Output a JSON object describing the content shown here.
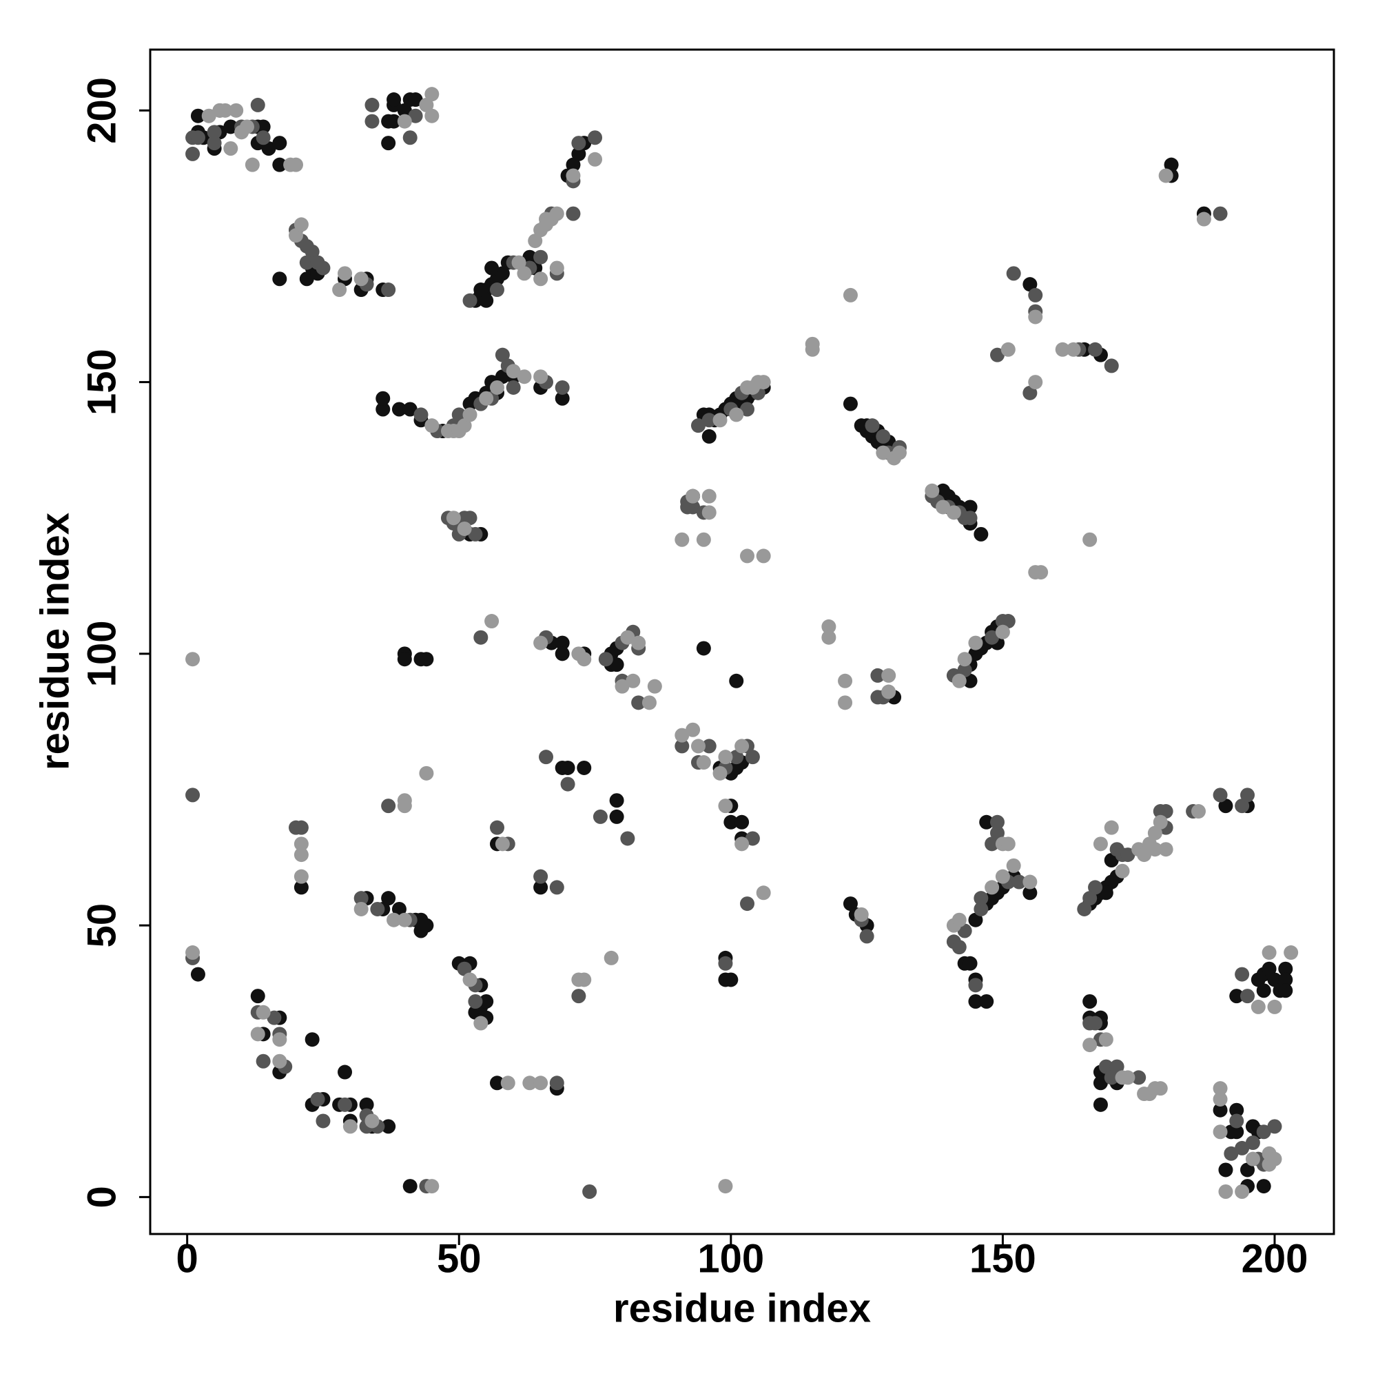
{
  "chart_data": {
    "type": "scatter",
    "x_label": "residue index",
    "y_label": "residue index",
    "xlim": [
      -6.8,
      210.9
    ],
    "ylim": [
      -6.8,
      211.2
    ],
    "xticks": [
      0,
      50,
      100,
      150,
      200
    ],
    "yticks": [
      0,
      50,
      100,
      150,
      200
    ],
    "series": [
      {
        "color": "#111111",
        "x": [
          2,
          2,
          3,
          5,
          6,
          8,
          13,
          13,
          14,
          15,
          17,
          17,
          38,
          38,
          38,
          41,
          42,
          37,
          37,
          40,
          53,
          54,
          55,
          56,
          57,
          58,
          56,
          59,
          63,
          64,
          71,
          72,
          73,
          70,
          55,
          54,
          22,
          23,
          24,
          17,
          29,
          32,
          33,
          36,
          36,
          36,
          39,
          41,
          43,
          47,
          52,
          53,
          55,
          57,
          56,
          58,
          60,
          65,
          69,
          95,
          96,
          97,
          98,
          99,
          100,
          101,
          102,
          103,
          104,
          106,
          96,
          122,
          124,
          125,
          126,
          127,
          128,
          129,
          130,
          125,
          127,
          139,
          140,
          141,
          142,
          143,
          144,
          144,
          146,
          93,
          52,
          54,
          40,
          40,
          43,
          44,
          67,
          69,
          69,
          73,
          78,
          78,
          79,
          79,
          95,
          101,
          130,
          144,
          145,
          146,
          147,
          148,
          149,
          144,
          149,
          98,
          100,
          101,
          102,
          100,
          100,
          102,
          102,
          69,
          70,
          73,
          79,
          79,
          2,
          21,
          57,
          33,
          36,
          37,
          39,
          42,
          43,
          43,
          44,
          50,
          52,
          54,
          53,
          54,
          55,
          55,
          65,
          57,
          68,
          13,
          14,
          17,
          17,
          23,
          23,
          25,
          28,
          30,
          29,
          30,
          33,
          34,
          37,
          41,
          99,
          99,
          100,
          122,
          123,
          125,
          143,
          144,
          145,
          145,
          147,
          145,
          147,
          148,
          149,
          150,
          152,
          155,
          147,
          166,
          167,
          168,
          169,
          170,
          171,
          170,
          169,
          191,
          195,
          181,
          181,
          187,
          155,
          165,
          168,
          166,
          166,
          168,
          168,
          168,
          168,
          171,
          168,
          190,
          191,
          192,
          193,
          193,
          195,
          195,
          196,
          197,
          198,
          193,
          197,
          198,
          198,
          199,
          200,
          201,
          202,
          202,
          202
        ],
        "y": [
          199,
          196,
          195,
          193,
          196,
          197,
          197,
          194,
          197,
          193,
          194,
          190,
          198,
          201,
          202,
          202,
          202,
          194,
          198,
          200,
          165,
          166,
          167,
          168,
          169,
          170,
          171,
          172,
          173,
          171,
          190,
          192,
          194,
          188,
          165,
          167,
          169,
          171,
          170,
          169,
          169,
          167,
          169,
          167,
          145,
          147,
          145,
          145,
          143,
          141,
          146,
          147,
          148,
          148,
          150,
          151,
          151,
          149,
          147,
          144,
          144,
          143,
          144,
          145,
          146,
          147,
          146,
          147,
          148,
          149,
          140,
          146,
          142,
          141,
          140,
          139,
          138,
          139,
          137,
          142,
          141,
          130,
          129,
          128,
          127,
          126,
          127,
          124,
          122,
          129,
          122,
          122,
          100,
          99,
          99,
          99,
          102,
          102,
          100,
          100,
          98,
          100,
          101,
          98,
          101,
          95,
          92,
          98,
          100,
          101,
          102,
          104,
          105,
          95,
          102,
          79,
          78,
          79,
          80,
          72,
          69,
          69,
          66,
          79,
          79,
          79,
          73,
          70,
          41,
          57,
          65,
          55,
          53,
          55,
          53,
          51,
          49,
          51,
          50,
          43,
          43,
          39,
          34,
          35,
          36,
          33,
          57,
          21,
          20,
          37,
          30,
          33,
          23,
          29,
          17,
          18,
          17,
          17,
          23,
          14,
          17,
          13,
          13,
          2,
          44,
          40,
          40,
          54,
          52,
          50,
          43,
          43,
          40,
          36,
          36,
          51,
          54,
          55,
          56,
          57,
          59,
          56,
          69,
          54,
          55,
          56,
          57,
          58,
          59,
          62,
          56,
          72,
          72,
          190,
          188,
          181,
          168,
          156,
          155,
          36,
          33,
          33,
          32,
          23,
          21,
          21,
          17,
          16,
          5,
          12,
          12,
          16,
          5,
          2,
          13,
          12,
          2,
          37,
          40,
          41,
          38,
          42,
          40,
          38,
          42,
          40,
          38
        ]
      },
      {
        "color": "#555555",
        "x": [
          1,
          2,
          5,
          5,
          6,
          10,
          12,
          14,
          1,
          13,
          34,
          34,
          41,
          42,
          52,
          57,
          60,
          63,
          65,
          68,
          67,
          71,
          71,
          72,
          75,
          20,
          21,
          22,
          23,
          22,
          24,
          25,
          33,
          37,
          43,
          46,
          49,
          50,
          54,
          56,
          58,
          59,
          66,
          69,
          60,
          94,
          96,
          100,
          102,
          105,
          103,
          126,
          128,
          129,
          131,
          137,
          138,
          140,
          142,
          143,
          144,
          92,
          93,
          95,
          92,
          48,
          49,
          50,
          52,
          53,
          51,
          54,
          66,
          77,
          80,
          82,
          80,
          83,
          83,
          127,
          128,
          127,
          141,
          143,
          150,
          148,
          151,
          91,
          94,
          96,
          99,
          101,
          103,
          104,
          104,
          103,
          66,
          70,
          76,
          81,
          72,
          74,
          1,
          1,
          37,
          20,
          21,
          57,
          59,
          32,
          35,
          41,
          51,
          53,
          53,
          65,
          68,
          68,
          13,
          16,
          17,
          14,
          18,
          24,
          25,
          29,
          33,
          35,
          33,
          44,
          99,
          124,
          125,
          141,
          142,
          143,
          145,
          146,
          151,
          153,
          148,
          149,
          149,
          146,
          165,
          171,
          172,
          173,
          179,
          180,
          180,
          167,
          166,
          185,
          190,
          194,
          195,
          190,
          152,
          156,
          156,
          149,
          155,
          164,
          167,
          170,
          166,
          167,
          168,
          169,
          170,
          171,
          175,
          192,
          193,
          194,
          196,
          197,
          198,
          198,
          200,
          194,
          195
        ],
        "y": [
          195,
          195,
          196,
          194,
          200,
          197,
          197,
          195,
          192,
          201,
          198,
          201,
          195,
          199,
          165,
          167,
          172,
          171,
          173,
          170,
          181,
          181,
          187,
          194,
          195,
          178,
          176,
          175,
          174,
          172,
          172,
          171,
          168,
          167,
          144,
          141,
          142,
          144,
          146,
          147,
          155,
          153,
          150,
          149,
          149,
          142,
          143,
          145,
          148,
          148,
          145,
          142,
          140,
          137,
          138,
          129,
          128,
          127,
          126,
          125,
          125,
          128,
          127,
          126,
          127,
          125,
          124,
          122,
          125,
          122,
          125,
          103,
          103,
          99,
          102,
          104,
          95,
          91,
          101,
          96,
          92,
          92,
          96,
          97,
          106,
          103,
          106,
          83,
          80,
          83,
          79,
          81,
          83,
          81,
          66,
          54,
          81,
          76,
          70,
          66,
          37,
          1,
          74,
          44,
          72,
          68,
          68,
          68,
          65,
          55,
          53,
          51,
          42,
          39,
          36,
          59,
          57,
          21,
          34,
          33,
          30,
          25,
          24,
          18,
          14,
          17,
          15,
          13,
          13,
          2,
          43,
          51,
          48,
          47,
          46,
          49,
          39,
          53,
          58,
          58,
          65,
          67,
          69,
          55,
          53,
          64,
          63,
          63,
          71,
          71,
          68,
          57,
          55,
          71,
          74,
          72,
          74,
          181,
          170,
          166,
          163,
          155,
          148,
          156,
          156,
          153,
          32,
          32,
          29,
          24,
          22,
          24,
          22,
          8,
          14,
          9,
          10,
          7,
          6,
          12,
          13,
          41,
          37
        ]
      },
      {
        "color": "#999999",
        "x": [
          4,
          6,
          7,
          9,
          10,
          11,
          12,
          19,
          20,
          8,
          44,
          45,
          45,
          40,
          61,
          62,
          64,
          65,
          66,
          67,
          68,
          65,
          68,
          71,
          75,
          66,
          20,
          21,
          28,
          29,
          32,
          45,
          48,
          49,
          51,
          52,
          55,
          57,
          60,
          65,
          62,
          50,
          98,
          101,
          103,
          105,
          106,
          104,
          130,
          131,
          128,
          137,
          139,
          141,
          91,
          93,
          95,
          96,
          96,
          103,
          106,
          115,
          115,
          122,
          118,
          118,
          49,
          51,
          1,
          56,
          65,
          72,
          73,
          81,
          83,
          80,
          82,
          85,
          86,
          121,
          121,
          129,
          129,
          142,
          143,
          145,
          150,
          91,
          93,
          94,
          95,
          98,
          102,
          99,
          102,
          106,
          99,
          78,
          72,
          73,
          1,
          40,
          40,
          44,
          21,
          21,
          21,
          58,
          32,
          38,
          40,
          52,
          54,
          59,
          63,
          65,
          14,
          13,
          17,
          17,
          30,
          34,
          45,
          99,
          124,
          141,
          142,
          155,
          150,
          152,
          150,
          151,
          148,
          172,
          168,
          170,
          175,
          176,
          177,
          178,
          179,
          180,
          178,
          186,
          180,
          187,
          156,
          151,
          156,
          163,
          161,
          166,
          156,
          157,
          166,
          169,
          172,
          173,
          176,
          177,
          178,
          179,
          190,
          190,
          190,
          191,
          194,
          196,
          199,
          199,
          200,
          197,
          199,
          200,
          203
        ],
        "y": [
          199,
          200,
          200,
          200,
          196,
          197,
          190,
          190,
          190,
          193,
          201,
          203,
          199,
          198,
          172,
          170,
          176,
          178,
          180,
          180,
          181,
          169,
          171,
          188,
          191,
          179,
          177,
          179,
          167,
          170,
          169,
          142,
          141,
          141,
          142,
          144,
          147,
          149,
          152,
          151,
          151,
          141,
          143,
          144,
          149,
          150,
          150,
          149,
          136,
          137,
          137,
          130,
          127,
          126,
          121,
          129,
          121,
          126,
          129,
          118,
          118,
          157,
          156,
          166,
          105,
          103,
          125,
          123,
          99,
          106,
          102,
          100,
          99,
          103,
          102,
          94,
          95,
          91,
          94,
          95,
          91,
          96,
          93,
          95,
          99,
          102,
          104,
          85,
          86,
          83,
          80,
          78,
          83,
          72,
          65,
          56,
          81,
          44,
          40,
          40,
          45,
          73,
          72,
          78,
          65,
          63,
          59,
          65,
          53,
          51,
          51,
          40,
          32,
          21,
          21,
          21,
          34,
          30,
          29,
          25,
          13,
          14,
          2,
          2,
          52,
          50,
          51,
          58,
          59,
          61,
          65,
          65,
          57,
          60,
          65,
          68,
          64,
          63,
          65,
          67,
          69,
          64,
          64,
          71,
          188,
          180,
          162,
          156,
          150,
          156,
          156,
          121,
          115,
          115,
          28,
          29,
          22,
          22,
          19,
          19,
          20,
          20,
          20,
          18,
          12,
          1,
          1,
          7,
          8,
          6,
          7,
          35,
          45,
          35,
          45
        ]
      }
    ]
  }
}
